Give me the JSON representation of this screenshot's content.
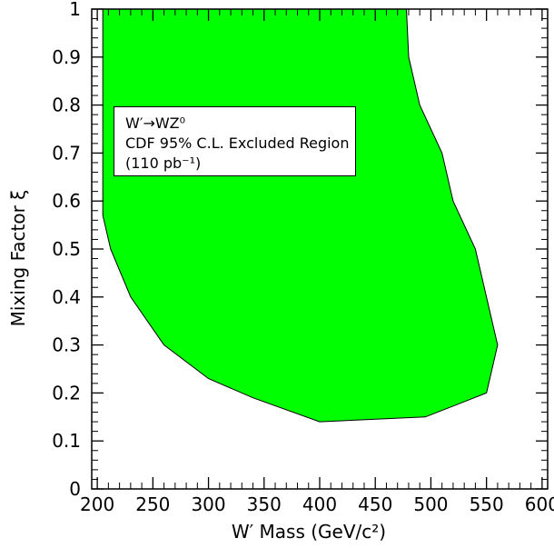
{
  "chart_data": {
    "type": "area",
    "title": "",
    "xlabel": "W′ Mass (GeV/c²)",
    "ylabel": "Mixing Factor ξ",
    "xlim": [
      195,
      605
    ],
    "ylim": [
      0,
      1
    ],
    "x_ticks": [
      "200",
      "250",
      "300",
      "350",
      "400",
      "450",
      "500",
      "550",
      "600"
    ],
    "y_ticks": [
      "0",
      "0.1",
      "0.2",
      "0.3",
      "0.4",
      "0.5",
      "0.6",
      "0.7",
      "0.8",
      "0.9",
      "1"
    ],
    "grid": false,
    "legend": {
      "position": "top-left",
      "lines": [
        "W′→WZ⁰",
        "CDF 95% C.L. Excluded Region",
        "(110 pb⁻¹)"
      ]
    },
    "series": [
      {
        "name": "CDF 95% C.L. Excluded Region",
        "fill": "#00ff00",
        "x": [
          205,
          205,
          212,
          230,
          260,
          300,
          340,
          400,
          495,
          550,
          560,
          540,
          520,
          510,
          490,
          480,
          478
        ],
        "y": [
          1.0,
          0.57,
          0.5,
          0.4,
          0.3,
          0.23,
          0.19,
          0.14,
          0.15,
          0.2,
          0.3,
          0.5,
          0.6,
          0.7,
          0.8,
          0.9,
          1.0
        ]
      }
    ]
  }
}
